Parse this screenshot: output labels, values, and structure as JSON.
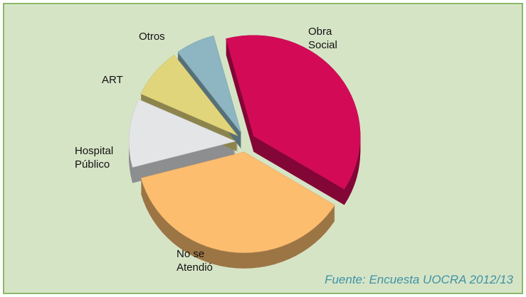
{
  "chart_data": {
    "type": "pie",
    "categories": [
      "Obra Social",
      "No se Atendió",
      "Hospital Público",
      "ART",
      "Otros"
    ],
    "values": [
      38,
      37,
      11,
      8,
      6
    ],
    "colors": [
      "#d30b57",
      "#fcbd6f",
      "#e3e5e7",
      "#e1d57b",
      "#8db5c2"
    ],
    "annotation": "Fuente: Encuesta UOCRA 2012/13"
  }
}
